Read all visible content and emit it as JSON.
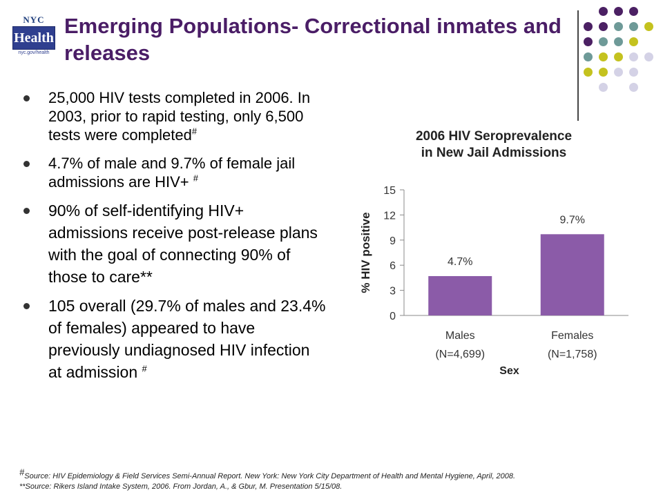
{
  "logo": {
    "top": "NYC",
    "box": "Health",
    "url": "nyc.gov/health"
  },
  "title": "Emerging Populations- Correctional inmates and releases",
  "colors": {
    "title": "#4a1d66",
    "bar": "#8b5ba8",
    "dot_purple": "#4b2063",
    "dot_teal": "#6e9a98",
    "dot_yellow": "#c4c21f",
    "dot_lavender": "#d4d2e6"
  },
  "bullets": [
    {
      "text": "25,000 HIV tests completed in 2006.  In 2003, prior to rapid testing, only 6,500 tests were completed",
      "mark": "#"
    },
    {
      "text": "4.7% of male and 9.7% of female jail admissions are HIV+",
      "mark": "#"
    },
    {
      "text": "90% of self-identifying HIV+ admissions receive post-release plans with the goal of connecting 90% of those to care**",
      "mark": ""
    },
    {
      "text": "105 overall (29.7% of males and 23.4% of females) appeared to have previously undiagnosed HIV infection at admission",
      "mark": "#"
    }
  ],
  "chart_data": {
    "type": "bar",
    "title": "2006 HIV Seroprevalence in New Jail Admissions",
    "title_lines": [
      "2006 HIV Seroprevalence",
      "in New Jail Admissions"
    ],
    "categories": [
      "Males",
      "Females"
    ],
    "category_sublabels": [
      "(N=4,699)",
      "(N=1,758)"
    ],
    "values": [
      4.7,
      9.7
    ],
    "data_labels": [
      "4.7%",
      "9.7%"
    ],
    "xlabel": "Sex",
    "ylabel": "% HIV positive",
    "ylim": [
      0,
      15
    ],
    "yticks": [
      0,
      3,
      6,
      9,
      12,
      15
    ],
    "grid": false
  },
  "footnotes": [
    {
      "mark": "#",
      "text": "Source: HIV Epidemiology & Field Services Semi-Annual Report. New York: New York City Department of Health and Mental Hygiene, April, 2008."
    },
    {
      "mark": "",
      "text": "**Source: Rikers Island Intake System, 2006.  From Jordan, A., & Gbur, M. Presentation 5/15/08."
    }
  ]
}
